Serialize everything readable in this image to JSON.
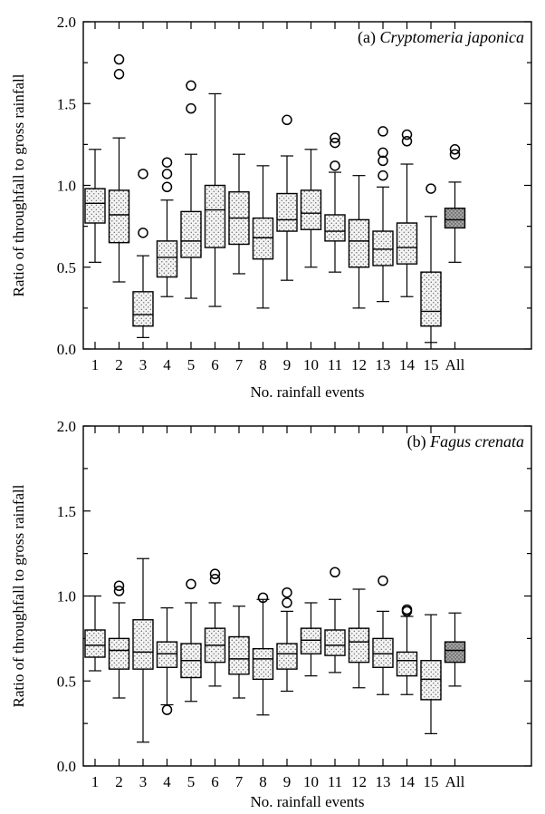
{
  "chart_data": [
    {
      "type": "boxplot",
      "panel_label_prefix": "(a) ",
      "panel_label_species": "Cryptomeria japonica",
      "xlabel": "No. rainfall events",
      "ylabel": "Ratio of throughfall to gross rainfall",
      "ylim": [
        0.0,
        2.0
      ],
      "yticks": [
        "0.0",
        "0.5",
        "1.0",
        "1.5",
        "2.0"
      ],
      "categories": [
        "1",
        "2",
        "3",
        "4",
        "5",
        "6",
        "7",
        "8",
        "9",
        "10",
        "11",
        "12",
        "13",
        "14",
        "15",
        "All"
      ],
      "colors": {
        "box_fill": "#f2f2f2",
        "all_fill": "#9a9a9a",
        "dot": "#555555"
      },
      "boxes": [
        {
          "min": 0.53,
          "q1": 0.77,
          "median": 0.89,
          "q3": 0.98,
          "max": 1.22,
          "outliers": []
        },
        {
          "min": 0.41,
          "q1": 0.65,
          "median": 0.82,
          "q3": 0.97,
          "max": 1.29,
          "outliers": [
            1.68,
            1.77
          ]
        },
        {
          "min": 0.07,
          "q1": 0.14,
          "median": 0.21,
          "q3": 0.35,
          "max": 0.57,
          "outliers": [
            0.71,
            1.07
          ]
        },
        {
          "min": 0.32,
          "q1": 0.44,
          "median": 0.56,
          "q3": 0.66,
          "max": 0.91,
          "outliers": [
            0.99,
            1.07,
            1.14
          ]
        },
        {
          "min": 0.31,
          "q1": 0.56,
          "median": 0.66,
          "q3": 0.84,
          "max": 1.19,
          "outliers": [
            1.47,
            1.61
          ]
        },
        {
          "min": 0.26,
          "q1": 0.62,
          "median": 0.85,
          "q3": 1.0,
          "max": 1.56,
          "outliers": []
        },
        {
          "min": 0.46,
          "q1": 0.64,
          "median": 0.8,
          "q3": 0.96,
          "max": 1.19,
          "outliers": []
        },
        {
          "min": 0.25,
          "q1": 0.55,
          "median": 0.68,
          "q3": 0.8,
          "max": 1.12,
          "outliers": []
        },
        {
          "min": 0.42,
          "q1": 0.72,
          "median": 0.79,
          "q3": 0.95,
          "max": 1.18,
          "outliers": [
            1.4
          ]
        },
        {
          "min": 0.5,
          "q1": 0.73,
          "median": 0.83,
          "q3": 0.97,
          "max": 1.22,
          "outliers": []
        },
        {
          "min": 0.47,
          "q1": 0.66,
          "median": 0.72,
          "q3": 0.82,
          "max": 1.08,
          "outliers": [
            1.12,
            1.26,
            1.29
          ]
        },
        {
          "min": 0.25,
          "q1": 0.5,
          "median": 0.66,
          "q3": 0.79,
          "max": 1.06,
          "outliers": []
        },
        {
          "min": 0.29,
          "q1": 0.51,
          "median": 0.61,
          "q3": 0.72,
          "max": 0.99,
          "outliers": [
            1.06,
            1.15,
            1.2,
            1.33
          ]
        },
        {
          "min": 0.32,
          "q1": 0.52,
          "median": 0.62,
          "q3": 0.77,
          "max": 1.13,
          "outliers": [
            1.27,
            1.31
          ]
        },
        {
          "min": 0.04,
          "q1": 0.14,
          "median": 0.23,
          "q3": 0.47,
          "max": 0.81,
          "outliers": [
            0.98
          ]
        },
        {
          "min": 0.53,
          "q1": 0.74,
          "median": 0.79,
          "q3": 0.86,
          "max": 1.02,
          "outliers": [
            1.19,
            1.22
          ]
        }
      ]
    },
    {
      "type": "boxplot",
      "panel_label_prefix": "(b) ",
      "panel_label_species": "Fagus crenata",
      "xlabel": "No. rainfall events",
      "ylabel": "Ratio of throughfall to gross rainfall",
      "ylim": [
        0.0,
        2.0
      ],
      "yticks": [
        "0.0",
        "0.5",
        "1.0",
        "1.5",
        "2.0"
      ],
      "categories": [
        "1",
        "2",
        "3",
        "4",
        "5",
        "6",
        "7",
        "8",
        "9",
        "10",
        "11",
        "12",
        "13",
        "14",
        "15",
        "All"
      ],
      "colors": {
        "box_fill": "#f2f2f2",
        "all_fill": "#9a9a9a",
        "dot": "#555555"
      },
      "boxes": [
        {
          "min": 0.56,
          "q1": 0.64,
          "median": 0.71,
          "q3": 0.8,
          "max": 1.0,
          "outliers": []
        },
        {
          "min": 0.4,
          "q1": 0.57,
          "median": 0.68,
          "q3": 0.75,
          "max": 0.96,
          "outliers": [
            1.03,
            1.06
          ]
        },
        {
          "min": 0.14,
          "q1": 0.57,
          "median": 0.67,
          "q3": 0.86,
          "max": 1.22,
          "outliers": []
        },
        {
          "min": 0.36,
          "q1": 0.58,
          "median": 0.66,
          "q3": 0.73,
          "max": 0.93,
          "outliers": [
            0.33
          ]
        },
        {
          "min": 0.38,
          "q1": 0.52,
          "median": 0.62,
          "q3": 0.72,
          "max": 0.96,
          "outliers": [
            1.07
          ]
        },
        {
          "min": 0.47,
          "q1": 0.61,
          "median": 0.71,
          "q3": 0.81,
          "max": 0.96,
          "outliers": [
            1.1,
            1.13
          ]
        },
        {
          "min": 0.4,
          "q1": 0.54,
          "median": 0.63,
          "q3": 0.76,
          "max": 0.94,
          "outliers": []
        },
        {
          "min": 0.3,
          "q1": 0.51,
          "median": 0.63,
          "q3": 0.69,
          "max": 0.98,
          "outliers": [
            0.99
          ]
        },
        {
          "min": 0.44,
          "q1": 0.57,
          "median": 0.66,
          "q3": 0.72,
          "max": 0.91,
          "outliers": [
            0.96,
            1.02
          ]
        },
        {
          "min": 0.53,
          "q1": 0.66,
          "median": 0.74,
          "q3": 0.81,
          "max": 0.96,
          "outliers": []
        },
        {
          "min": 0.55,
          "q1": 0.65,
          "median": 0.71,
          "q3": 0.8,
          "max": 0.98,
          "outliers": [
            1.14
          ]
        },
        {
          "min": 0.46,
          "q1": 0.61,
          "median": 0.73,
          "q3": 0.81,
          "max": 1.04,
          "outliers": []
        },
        {
          "min": 0.42,
          "q1": 0.58,
          "median": 0.66,
          "q3": 0.75,
          "max": 0.91,
          "outliers": [
            1.09
          ]
        },
        {
          "min": 0.42,
          "q1": 0.53,
          "median": 0.62,
          "q3": 0.67,
          "max": 0.88,
          "outliers": [
            0.91,
            0.92
          ]
        },
        {
          "min": 0.19,
          "q1": 0.39,
          "median": 0.51,
          "q3": 0.62,
          "max": 0.89,
          "outliers": []
        },
        {
          "min": 0.47,
          "q1": 0.61,
          "median": 0.68,
          "q3": 0.73,
          "max": 0.9,
          "outliers": []
        }
      ]
    }
  ]
}
